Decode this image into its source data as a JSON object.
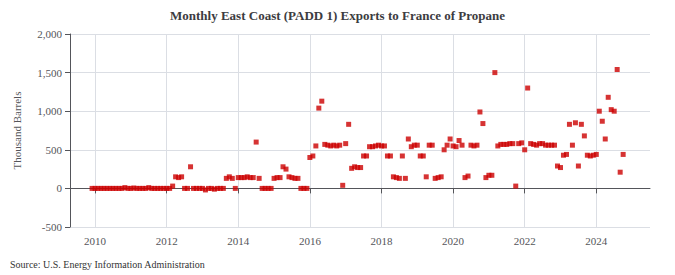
{
  "chart_data": {
    "type": "scatter",
    "title": "Monthly East Coast (PADD 1) Exports to France of Propane",
    "ylabel": "Thousand Barrels",
    "source": "Source: U.S. Energy Information Administration",
    "color": "#cc0000",
    "marker": "square",
    "grid": true,
    "xlim": [
      2009.3,
      2025.5
    ],
    "xticks": [
      2010,
      2012,
      2014,
      2016,
      2018,
      2020,
      2022,
      2024
    ],
    "ylim": [
      -500,
      2000
    ],
    "yticks": [
      -500,
      0,
      500,
      {
        "value": 1000,
        "label": "1,000"
      },
      {
        "value": 1500,
        "label": "1,500"
      },
      {
        "value": 2000,
        "label": "2,000"
      }
    ],
    "x": [
      2009.917,
      2010.0,
      2010.083,
      2010.167,
      2010.25,
      2010.333,
      2010.417,
      2010.5,
      2010.583,
      2010.667,
      2010.75,
      2010.833,
      2010.917,
      2011.0,
      2011.083,
      2011.167,
      2011.25,
      2011.333,
      2011.417,
      2011.5,
      2011.583,
      2011.667,
      2011.75,
      2011.833,
      2011.917,
      2012.0,
      2012.083,
      2012.167,
      2012.25,
      2012.333,
      2012.417,
      2012.5,
      2012.583,
      2012.667,
      2012.75,
      2012.833,
      2012.917,
      2013.0,
      2013.083,
      2013.167,
      2013.25,
      2013.333,
      2013.417,
      2013.5,
      2013.583,
      2013.667,
      2013.75,
      2013.833,
      2013.917,
      2014.0,
      2014.083,
      2014.167,
      2014.25,
      2014.333,
      2014.417,
      2014.5,
      2014.583,
      2014.667,
      2014.75,
      2014.833,
      2014.917,
      2015.0,
      2015.083,
      2015.167,
      2015.25,
      2015.333,
      2015.417,
      2015.5,
      2015.583,
      2015.667,
      2015.75,
      2015.833,
      2015.917,
      2016.0,
      2016.083,
      2016.167,
      2016.25,
      2016.333,
      2016.417,
      2016.5,
      2016.583,
      2016.667,
      2016.75,
      2016.833,
      2016.917,
      2017.0,
      2017.083,
      2017.167,
      2017.25,
      2017.333,
      2017.417,
      2017.5,
      2017.583,
      2017.667,
      2017.75,
      2017.833,
      2017.917,
      2018.0,
      2018.083,
      2018.167,
      2018.25,
      2018.333,
      2018.417,
      2018.5,
      2018.583,
      2018.667,
      2018.75,
      2018.833,
      2018.917,
      2019.0,
      2019.083,
      2019.167,
      2019.25,
      2019.333,
      2019.417,
      2019.5,
      2019.583,
      2019.667,
      2019.75,
      2019.833,
      2019.917,
      2020.0,
      2020.083,
      2020.167,
      2020.25,
      2020.333,
      2020.417,
      2020.5,
      2020.583,
      2020.667,
      2020.75,
      2020.833,
      2020.917,
      2021.0,
      2021.083,
      2021.167,
      2021.25,
      2021.333,
      2021.417,
      2021.5,
      2021.583,
      2021.667,
      2021.75,
      2021.833,
      2021.917,
      2022.0,
      2022.083,
      2022.167,
      2022.25,
      2022.333,
      2022.417,
      2022.5,
      2022.583,
      2022.667,
      2022.75,
      2022.833,
      2022.917,
      2023.0,
      2023.083,
      2023.167,
      2023.25,
      2023.333,
      2023.417,
      2023.5,
      2023.583,
      2023.667,
      2023.75,
      2023.833,
      2023.917,
      2024.0,
      2024.083,
      2024.167,
      2024.25,
      2024.333,
      2024.417,
      2024.5,
      2024.583,
      2024.667,
      2024.75
    ],
    "values": [
      0,
      0,
      0,
      0,
      0,
      0,
      0,
      0,
      0,
      0,
      0,
      10,
      0,
      0,
      5,
      0,
      0,
      0,
      0,
      10,
      0,
      0,
      0,
      0,
      0,
      0,
      0,
      30,
      150,
      140,
      150,
      0,
      0,
      280,
      0,
      0,
      0,
      0,
      -20,
      0,
      0,
      -10,
      0,
      0,
      0,
      130,
      150,
      130,
      0,
      140,
      140,
      140,
      150,
      140,
      140,
      600,
      130,
      0,
      0,
      0,
      0,
      130,
      140,
      140,
      280,
      250,
      150,
      140,
      130,
      130,
      0,
      0,
      0,
      400,
      420,
      550,
      1040,
      1130,
      570,
      560,
      550,
      560,
      550,
      560,
      40,
      580,
      830,
      260,
      280,
      270,
      270,
      420,
      420,
      540,
      540,
      550,
      560,
      550,
      550,
      420,
      420,
      150,
      140,
      130,
      420,
      130,
      640,
      540,
      560,
      560,
      420,
      420,
      150,
      560,
      560,
      130,
      140,
      150,
      500,
      560,
      640,
      550,
      540,
      620,
      560,
      140,
      160,
      560,
      550,
      560,
      990,
      840,
      140,
      170,
      170,
      1500,
      550,
      570,
      570,
      570,
      580,
      580,
      30,
      580,
      590,
      500,
      1300,
      580,
      570,
      560,
      580,
      580,
      560,
      560,
      560,
      560,
      290,
      270,
      430,
      440,
      830,
      560,
      850,
      290,
      830,
      680,
      430,
      420,
      430,
      440,
      1000,
      870,
      640,
      1180,
      1020,
      1000,
      1540,
      210,
      440
    ]
  }
}
